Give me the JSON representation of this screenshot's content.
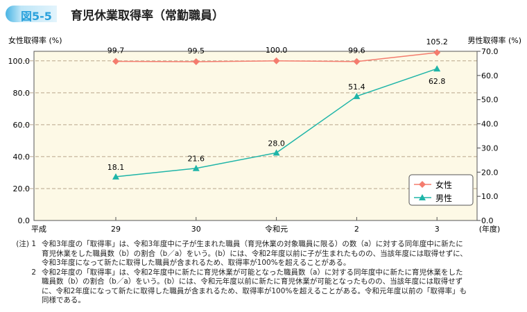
{
  "header": {
    "figure_no": "図5-5",
    "title": "育児休業取得率（常勤職員）"
  },
  "chart_data": {
    "type": "line",
    "categories": [
      "29",
      "30",
      "令和元",
      "2",
      "3"
    ],
    "x_prefix_label": "平成",
    "xlabel": "(年度)",
    "ylabel_left": "女性取得率 (%)",
    "ylabel_right": "男性取得率 (%)",
    "ylim_left": [
      0,
      106
    ],
    "ylim_right": [
      0,
      70
    ],
    "yticks_left": [
      "0.0",
      "20.0",
      "40.0",
      "60.0",
      "80.0",
      "100.0"
    ],
    "yticks_right": [
      "0.0",
      "10.0",
      "20.0",
      "30.0",
      "40.0",
      "50.0",
      "60.0",
      "70.0"
    ],
    "grid": "dashed horizontal at left-axis ticks",
    "legend_placement": "bottom-right",
    "series": [
      {
        "name": "女性",
        "axis": "left",
        "marker": "diamond",
        "color": "#f47c6e",
        "values": [
          99.7,
          99.5,
          100.0,
          99.6,
          105.2
        ],
        "labels": [
          "99.7",
          "99.5",
          "100.0",
          "99.6",
          "105.2"
        ]
      },
      {
        "name": "男性",
        "axis": "right",
        "marker": "triangle",
        "color": "#1fb5a8",
        "values": [
          18.1,
          21.6,
          28.0,
          51.4,
          62.8
        ],
        "labels": [
          "18.1",
          "21.6",
          "28.0",
          "51.4",
          "62.8"
        ]
      }
    ],
    "background": "#fdf9e6"
  },
  "notes": {
    "prefix": "(注)",
    "items": [
      {
        "num": "1",
        "lines": [
          "令和3年度の「取得率」は、令和3年度中に子が生まれた職員（育児休業の対象職員に限る）の数（a）に対する同年度中に新たに",
          "育児休業をした職員数（b）の割合（b／a）をいう。(b）には、令和2年度以前に子が生まれたものの、当該年度には取得せずに、",
          "令和3年度になって新たに取得した職員が含まれるため、取得率が100%を超えることがある。"
        ]
      },
      {
        "num": "2",
        "lines": [
          "令和2年度の「取得率」は、令和2年度中に新たに育児休業が可能となった職員数（a）に対する同年度中に新たに育児休業をした",
          "職員数（b）の割合（b／a）をいう。(b）には、令和元年度以前に新たに育児休業が可能となったものの、当該年度には取得せず",
          "に、令和2年度になって新たに取得した職員が含まれるため、取得率が100%を超えることがある。令和元年度以前の「取得率」も",
          "同様である。"
        ]
      }
    ]
  }
}
